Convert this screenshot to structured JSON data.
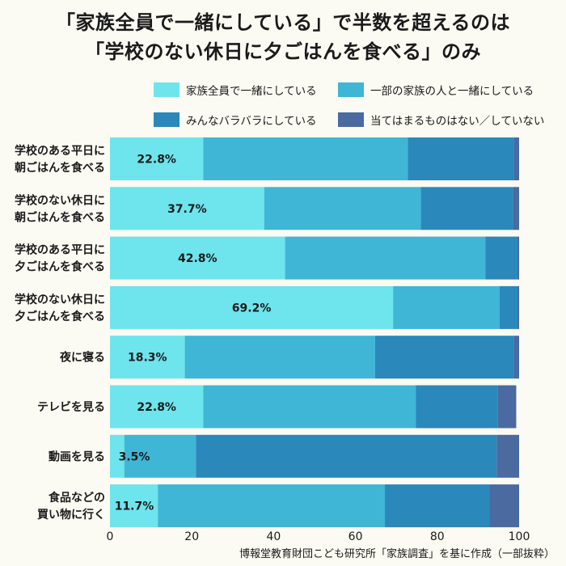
{
  "title_lines": [
    "「家族全員で一緒にしている」で半数を超えるのは",
    "「学校のない休日に夕ごはんを食べる」のみ"
  ],
  "source": "博報堂教育財団こども研究所「家族調査」を基に作成（一部抜粋）",
  "chart_data": {
    "type": "bar",
    "orientation": "horizontal",
    "stacked": true,
    "categories": [
      [
        "学校のある平日に",
        "朝ごはんを食べる"
      ],
      [
        "学校のない休日に",
        "朝ごはんを食べる"
      ],
      [
        "学校のある平日に",
        "夕ごはんを食べる"
      ],
      [
        "学校のない休日に",
        "夕ごはんを食べる"
      ],
      [
        "夜に寝る"
      ],
      [
        "テレビを見る"
      ],
      [
        "動画を見る"
      ],
      [
        "食品などの",
        "買い物に行く"
      ]
    ],
    "series": [
      {
        "name": "家族全員で一緒にしている",
        "color": "#6ee4ec",
        "values": [
          22.8,
          37.7,
          42.8,
          69.2,
          18.3,
          22.8,
          3.5,
          11.7
        ]
      },
      {
        "name": "一部の家族の人と一緒にしている",
        "color": "#3fb6d5",
        "values": [
          50.0,
          38.3,
          49.0,
          26.0,
          46.5,
          52.0,
          17.5,
          55.5
        ]
      },
      {
        "name": "みんなバラバラにしている",
        "color": "#2a88bb",
        "values": [
          26.0,
          22.5,
          7.8,
          4.4,
          34.0,
          20.0,
          73.5,
          25.5
        ]
      },
      {
        "name": "当てはまるものはない／していない",
        "color": "#4a6aa0",
        "values": [
          1.2,
          1.5,
          0.4,
          0.4,
          1.2,
          4.5,
          5.5,
          7.3
        ]
      }
    ],
    "data_labels": [
      "22.8%",
      "37.7%",
      "42.8%",
      "69.2%",
      "18.3%",
      "22.8%",
      "3.5%",
      "11.7%"
    ],
    "xlim": [
      0,
      100
    ],
    "xticks": [
      0,
      20,
      40,
      60,
      80,
      100
    ],
    "legend_position": "top",
    "grid": false
  }
}
